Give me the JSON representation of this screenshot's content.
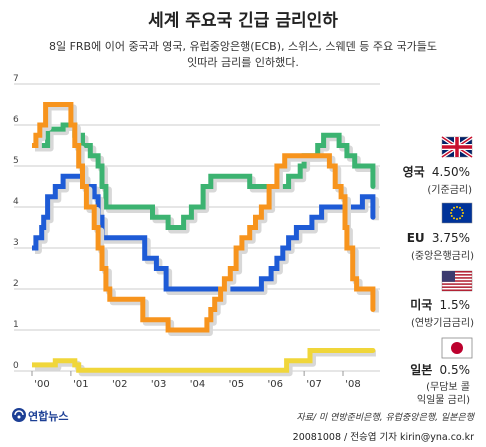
{
  "title": "세계 주요국 긴급 금리인하",
  "subtitle_lines": [
    "8일 FRB에 이어 중국과 영국, 유럽중앙은행(ECB), 스위스, 스웨덴 등 주요 국가들도",
    "잇따라 금리를 인하했다."
  ],
  "source": "자료/ 미 연방준비은행, 유럽중앙은행, 일본은행",
  "credit": "20081008 / 전승엽 기자  kirin@yna.co.kr",
  "logo_text": "연합뉴스",
  "chart_data": {
    "type": "line",
    "ylim": [
      0,
      7
    ],
    "yticks": [
      "0",
      "1",
      "2",
      "3",
      "4",
      "5",
      "6",
      "7"
    ],
    "xlim": [
      2000,
      2008.9
    ],
    "xtick_labels": [
      "'00",
      "'01",
      "'02",
      "'03",
      "'04",
      "'05",
      "'06",
      "'07",
      "'08"
    ],
    "xtick_values": [
      2000,
      2001,
      2002,
      2003,
      2004,
      2005,
      2006,
      2007,
      2008
    ],
    "grid": "horizontal",
    "series": [
      {
        "name": "영국",
        "color": "#3cb371",
        "points": [
          [
            2000.0,
            5.5
          ],
          [
            2000.4,
            5.9
          ],
          [
            2000.8,
            6.0
          ],
          [
            2001.1,
            5.75
          ],
          [
            2001.3,
            5.5
          ],
          [
            2001.5,
            5.25
          ],
          [
            2001.7,
            5.0
          ],
          [
            2001.8,
            4.5
          ],
          [
            2001.9,
            4.0
          ],
          [
            2003.1,
            3.75
          ],
          [
            2003.5,
            3.5
          ],
          [
            2003.9,
            3.75
          ],
          [
            2004.1,
            4.0
          ],
          [
            2004.4,
            4.5
          ],
          [
            2004.6,
            4.75
          ],
          [
            2005.6,
            4.5
          ],
          [
            2006.6,
            4.75
          ],
          [
            2006.9,
            5.0
          ],
          [
            2007.0,
            5.25
          ],
          [
            2007.35,
            5.5
          ],
          [
            2007.5,
            5.75
          ],
          [
            2007.9,
            5.5
          ],
          [
            2008.1,
            5.25
          ],
          [
            2008.3,
            5.0
          ],
          [
            2008.77,
            5.0
          ],
          [
            2008.77,
            4.5
          ]
        ],
        "label_name": "영국",
        "label_value": "4.50%",
        "label_note": "(기준금리)"
      },
      {
        "name": "EU",
        "color": "#1e5bd6",
        "points": [
          [
            2000.0,
            3.0
          ],
          [
            2000.1,
            3.25
          ],
          [
            2000.25,
            3.5
          ],
          [
            2000.3,
            3.75
          ],
          [
            2000.4,
            4.25
          ],
          [
            2000.6,
            4.5
          ],
          [
            2000.8,
            4.75
          ],
          [
            2001.35,
            4.5
          ],
          [
            2001.6,
            4.25
          ],
          [
            2001.7,
            3.75
          ],
          [
            2001.8,
            3.25
          ],
          [
            2002.9,
            2.75
          ],
          [
            2003.2,
            2.5
          ],
          [
            2003.45,
            2.0
          ],
          [
            2005.9,
            2.25
          ],
          [
            2006.15,
            2.5
          ],
          [
            2006.3,
            2.75
          ],
          [
            2006.45,
            3.0
          ],
          [
            2006.6,
            3.25
          ],
          [
            2006.8,
            3.5
          ],
          [
            2007.2,
            3.75
          ],
          [
            2007.45,
            4.0
          ],
          [
            2008.5,
            4.25
          ],
          [
            2008.77,
            4.25
          ],
          [
            2008.77,
            3.75
          ]
        ],
        "label_name": "EU",
        "label_value": "3.75%",
        "label_note": "(중앙은행금리)"
      },
      {
        "name": "미국",
        "color": "#f7941d",
        "points": [
          [
            2000.0,
            5.5
          ],
          [
            2000.1,
            5.75
          ],
          [
            2000.2,
            6.0
          ],
          [
            2000.35,
            6.5
          ],
          [
            2001.0,
            6.0
          ],
          [
            2001.1,
            5.5
          ],
          [
            2001.2,
            5.0
          ],
          [
            2001.3,
            4.5
          ],
          [
            2001.4,
            4.0
          ],
          [
            2001.6,
            3.5
          ],
          [
            2001.7,
            3.0
          ],
          [
            2001.8,
            2.5
          ],
          [
            2001.9,
            2.0
          ],
          [
            2002.0,
            1.75
          ],
          [
            2002.85,
            1.25
          ],
          [
            2003.5,
            1.0
          ],
          [
            2004.5,
            1.25
          ],
          [
            2004.6,
            1.5
          ],
          [
            2004.7,
            1.75
          ],
          [
            2004.85,
            2.0
          ],
          [
            2004.95,
            2.25
          ],
          [
            2005.1,
            2.5
          ],
          [
            2005.25,
            3.0
          ],
          [
            2005.4,
            3.25
          ],
          [
            2005.6,
            3.5
          ],
          [
            2005.75,
            3.75
          ],
          [
            2005.9,
            4.0
          ],
          [
            2006.1,
            4.5
          ],
          [
            2006.3,
            5.0
          ],
          [
            2006.5,
            5.25
          ],
          [
            2007.65,
            5.0
          ],
          [
            2007.8,
            4.5
          ],
          [
            2007.95,
            4.25
          ],
          [
            2008.05,
            3.5
          ],
          [
            2008.1,
            3.0
          ],
          [
            2008.25,
            2.25
          ],
          [
            2008.35,
            2.0
          ],
          [
            2008.77,
            2.0
          ],
          [
            2008.77,
            1.5
          ]
        ],
        "label_name": "미국",
        "label_value": "1.5%",
        "label_note": "(연방기금금리)"
      },
      {
        "name": "일본",
        "color": "#f0d63a",
        "points": [
          [
            2000.0,
            0.15
          ],
          [
            2000.6,
            0.25
          ],
          [
            2001.1,
            0.15
          ],
          [
            2001.2,
            0.02
          ],
          [
            2006.5,
            0.02
          ],
          [
            2006.55,
            0.25
          ],
          [
            2007.15,
            0.5
          ],
          [
            2008.77,
            0.5
          ]
        ],
        "label_name": "일본",
        "label_value": "0.5%",
        "label_note_lines": [
          "(무담보 콜",
          "익일물 금리)"
        ]
      }
    ]
  },
  "colors": {
    "background": "#ffffff",
    "grid": "#cccccc",
    "axis": "#999999",
    "text": "#222222",
    "shadow": "#d8d8d8"
  },
  "icons": {
    "uk": "uk-flag-icon",
    "eu": "eu-flag-icon",
    "us": "us-flag-icon",
    "jp": "japan-flag-icon",
    "logo": "yonhap-logo-icon"
  }
}
